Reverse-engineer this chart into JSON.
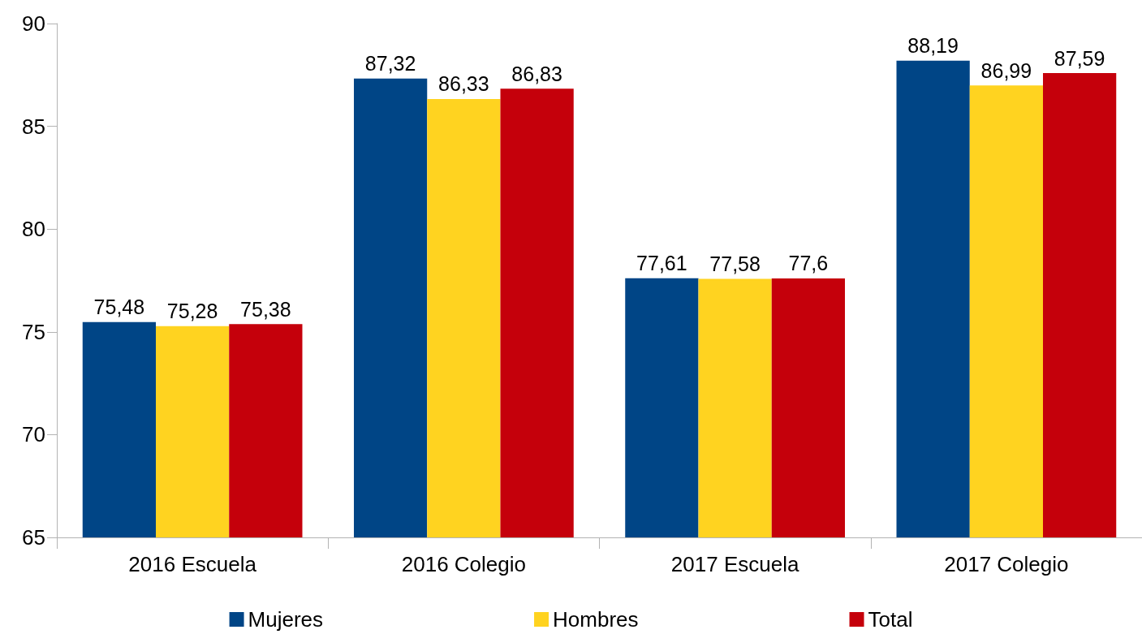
{
  "chart_data": {
    "type": "bar",
    "categories": [
      "2016 Escuela",
      "2016 Colegio",
      "2017 Escuela",
      "2017 Colegio"
    ],
    "series": [
      {
        "name": "Mujeres",
        "color": "#004586",
        "values": [
          75.48,
          87.32,
          77.61,
          88.19
        ],
        "value_labels": [
          "75,48",
          "87,32",
          "77,61",
          "88,19"
        ]
      },
      {
        "name": "Hombres",
        "color": "#ffd320",
        "values": [
          75.28,
          86.33,
          77.58,
          86.99
        ],
        "value_labels": [
          "75,28",
          "86,33",
          "77,58",
          "86,99"
        ]
      },
      {
        "name": "Total",
        "color": "#c5000b",
        "values": [
          75.38,
          86.83,
          77.6,
          87.59
        ],
        "value_labels": [
          "75,38",
          "86,83",
          "77,6",
          "87,59"
        ]
      }
    ],
    "ylim": [
      65,
      90
    ],
    "yticks": [
      65,
      70,
      75,
      80,
      85,
      90
    ],
    "grid": false,
    "legend": "bottom"
  }
}
